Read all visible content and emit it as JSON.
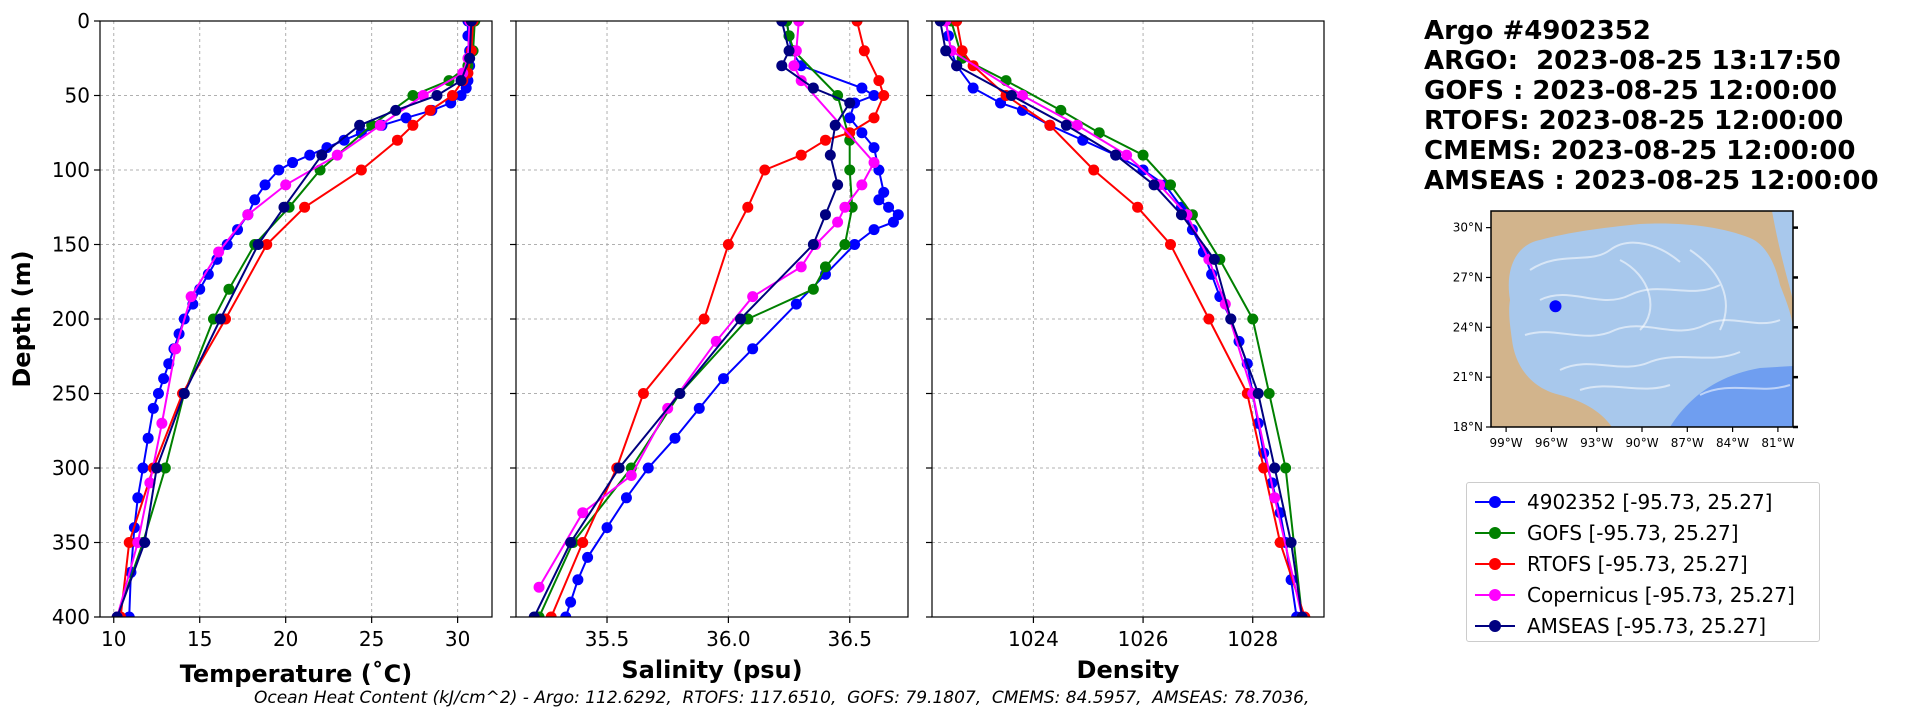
{
  "title": {
    "lines": [
      "Argo #4902352",
      "ARGO:  2023-08-25 13:17:50",
      "GOFS : 2023-08-25 12:00:00",
      "RTOFS: 2023-08-25 12:00:00",
      "CMEMS: 2023-08-25 12:00:00",
      "AMSEAS : 2023-08-25 12:00:00"
    ]
  },
  "footer": {
    "ohc_text": "Ocean Heat Content (kJ/cm^2) - Argo: 112.6292,  RTOFS: 117.6510,  GOFS: 79.1807,  CMEMS: 84.5957,  AMSEAS: 78.7036,"
  },
  "legend": {
    "items": [
      {
        "label": "4902352 [-95.73, 25.27]",
        "color": "#0000ff"
      },
      {
        "label": "GOFS [-95.73, 25.27]",
        "color": "#008000"
      },
      {
        "label": "RTOFS [-95.73, 25.27]",
        "color": "#ff0000"
      },
      {
        "label": "Copernicus [-95.73, 25.27]",
        "color": "#ff00ff"
      },
      {
        "label": "AMSEAS [-95.73, 25.27]",
        "color": "#000080"
      }
    ]
  },
  "chart_data": [
    {
      "type": "line",
      "xlabel": "Temperature (˚C)",
      "ylabel": "Depth (m)",
      "xlim": [
        9.2,
        32
      ],
      "ylim": [
        400,
        0
      ],
      "xticks": [
        10,
        15,
        20,
        25,
        30
      ],
      "yticks": [
        0,
        50,
        100,
        150,
        200,
        250,
        300,
        350,
        400
      ],
      "grid": true,
      "series": [
        {
          "color": "#0000ff",
          "x": [
            30.6,
            30.6,
            30.7,
            30.7,
            30.6,
            30.5,
            30.2,
            29.6,
            28.5,
            27.0,
            25.6,
            24.4,
            23.4,
            22.4,
            21.4,
            20.4,
            19.6,
            18.8,
            18.2,
            17.8,
            17.2,
            16.6,
            16.0,
            15.5,
            15.0,
            14.6,
            14.1,
            13.8,
            13.5,
            13.2,
            12.9,
            12.6,
            12.3,
            12.0,
            11.7,
            11.4,
            11.2,
            11.0,
            10.9
          ],
          "y": [
            0,
            10,
            20,
            30,
            40,
            45,
            50,
            55,
            60,
            65,
            70,
            75,
            80,
            85,
            90,
            95,
            100,
            110,
            120,
            130,
            140,
            150,
            160,
            170,
            180,
            190,
            200,
            210,
            220,
            230,
            240,
            250,
            260,
            280,
            300,
            320,
            340,
            370,
            400
          ]
        },
        {
          "color": "#008000",
          "x": [
            31.0,
            30.9,
            30.6,
            29.5,
            27.4,
            25.0,
            22.0,
            20.2,
            18.2,
            16.7,
            15.8,
            14.1,
            13.0,
            11.7,
            10.2
          ],
          "y": [
            0,
            20,
            30,
            40,
            50,
            70,
            100,
            125,
            150,
            180,
            200,
            250,
            300,
            350,
            400
          ]
        },
        {
          "color": "#ff0000",
          "x": [
            30.9,
            30.8,
            30.6,
            30.3,
            29.7,
            28.4,
            27.4,
            26.5,
            24.4,
            21.1,
            18.9,
            16.5,
            14.0,
            12.3,
            10.9,
            10.4
          ],
          "y": [
            0,
            20,
            35,
            40,
            50,
            60,
            70,
            80,
            100,
            125,
            150,
            200,
            250,
            300,
            350,
            400
          ]
        },
        {
          "color": "#ff00ff",
          "x": [
            30.7,
            30.6,
            30.3,
            28.0,
            25.5,
            23.0,
            20.0,
            17.8,
            16.1,
            14.5,
            13.6,
            12.8,
            12.1,
            11.4,
            10.2
          ],
          "y": [
            0,
            25,
            35,
            50,
            70,
            90,
            110,
            130,
            155,
            185,
            220,
            270,
            310,
            350,
            400
          ]
        },
        {
          "color": "#000080",
          "x": [
            30.8,
            30.7,
            30.2,
            28.8,
            26.4,
            24.3,
            22.1,
            19.9,
            18.4,
            16.2,
            14.1,
            12.5,
            11.8,
            10.2
          ],
          "y": [
            0,
            25,
            40,
            50,
            60,
            70,
            90,
            125,
            150,
            200,
            250,
            300,
            350,
            400
          ]
        }
      ]
    },
    {
      "type": "line",
      "xlabel": "Salinity (psu)",
      "ylabel": "",
      "xlim": [
        35.125,
        36.74
      ],
      "ylim": [
        400,
        0
      ],
      "xticks": [
        35.5,
        36.0,
        36.5
      ],
      "xtick_labels": [
        "35.5",
        "36.0",
        "36.5"
      ],
      "yticks": [
        0,
        50,
        100,
        150,
        200,
        250,
        300,
        350,
        400
      ],
      "grid": true,
      "series": [
        {
          "color": "#0000ff",
          "x": [
            36.24,
            36.25,
            36.26,
            36.3,
            36.55,
            36.6,
            36.52,
            36.5,
            36.55,
            36.6,
            36.62,
            36.64,
            36.62,
            36.66,
            36.7,
            36.68,
            36.6,
            36.52,
            36.4,
            36.28,
            36.1,
            35.98,
            35.88,
            35.78,
            35.67,
            35.58,
            35.5,
            35.42,
            35.38,
            35.35,
            35.33
          ],
          "y": [
            0,
            10,
            20,
            30,
            45,
            50,
            55,
            65,
            75,
            85,
            100,
            115,
            120,
            125,
            130,
            135,
            140,
            150,
            170,
            190,
            220,
            240,
            260,
            280,
            300,
            320,
            340,
            360,
            375,
            390,
            400
          ]
        },
        {
          "color": "#008000",
          "x": [
            36.24,
            36.25,
            36.27,
            36.45,
            36.5,
            36.5,
            36.51,
            36.48,
            36.4,
            36.35,
            36.08,
            35.8,
            35.6,
            35.36,
            35.22
          ],
          "y": [
            0,
            10,
            20,
            50,
            80,
            100,
            125,
            150,
            165,
            180,
            200,
            250,
            300,
            350,
            400
          ]
        },
        {
          "color": "#ff0000",
          "x": [
            36.53,
            36.56,
            36.62,
            36.64,
            36.6,
            36.5,
            36.4,
            36.3,
            36.15,
            36.08,
            36.0,
            35.9,
            35.65,
            35.54,
            35.4,
            35.27
          ],
          "y": [
            0,
            20,
            40,
            50,
            65,
            75,
            80,
            90,
            100,
            125,
            150,
            200,
            250,
            300,
            350,
            400
          ]
        },
        {
          "color": "#ff00ff",
          "x": [
            36.29,
            36.28,
            36.27,
            36.3,
            36.6,
            36.55,
            36.48,
            36.45,
            36.36,
            36.3,
            36.1,
            35.95,
            35.75,
            35.6,
            35.4,
            35.22
          ],
          "y": [
            0,
            20,
            30,
            40,
            95,
            110,
            125,
            135,
            150,
            165,
            185,
            215,
            260,
            305,
            330,
            380
          ]
        },
        {
          "color": "#000080",
          "x": [
            36.22,
            36.25,
            36.22,
            36.35,
            36.5,
            36.44,
            36.42,
            36.45,
            36.4,
            36.35,
            36.05,
            35.8,
            35.55,
            35.35,
            35.2
          ],
          "y": [
            0,
            20,
            30,
            45,
            55,
            70,
            90,
            110,
            130,
            150,
            200,
            250,
            300,
            350,
            400
          ]
        }
      ]
    },
    {
      "type": "line",
      "xlabel": "Density",
      "ylabel": "",
      "xlim": [
        1022.15,
        1029.3
      ],
      "ylim": [
        400,
        0
      ],
      "xticks": [
        1024,
        1026,
        1028
      ],
      "yticks": [
        0,
        50,
        100,
        150,
        200,
        250,
        300,
        350,
        400
      ],
      "grid": true,
      "series": [
        {
          "color": "#0000ff",
          "x": [
            1022.4,
            1022.45,
            1022.5,
            1022.6,
            1022.9,
            1023.4,
            1023.8,
            1024.3,
            1024.9,
            1025.5,
            1026.0,
            1026.4,
            1026.7,
            1026.9,
            1027.1,
            1027.25,
            1027.4,
            1027.6,
            1027.75,
            1027.9,
            1028.0,
            1028.1,
            1028.2,
            1028.35,
            1028.5,
            1028.6,
            1028.7,
            1028.8
          ],
          "y": [
            0,
            10,
            20,
            30,
            45,
            55,
            60,
            70,
            80,
            90,
            100,
            110,
            125,
            140,
            155,
            170,
            185,
            200,
            215,
            230,
            250,
            270,
            290,
            310,
            330,
            350,
            375,
            400
          ]
        },
        {
          "color": "#008000",
          "x": [
            1022.5,
            1022.7,
            1023.5,
            1024.5,
            1025.2,
            1026.0,
            1026.5,
            1026.9,
            1027.4,
            1028.0,
            1028.3,
            1028.6,
            1028.9
          ],
          "y": [
            0,
            25,
            40,
            60,
            75,
            90,
            110,
            130,
            160,
            200,
            250,
            300,
            400
          ]
        },
        {
          "color": "#ff0000",
          "x": [
            1022.6,
            1022.7,
            1022.9,
            1023.5,
            1024.3,
            1025.1,
            1025.9,
            1026.5,
            1027.2,
            1027.9,
            1028.2,
            1028.5,
            1028.95
          ],
          "y": [
            0,
            20,
            30,
            50,
            70,
            100,
            125,
            150,
            200,
            250,
            300,
            350,
            400
          ]
        },
        {
          "color": "#ff00ff",
          "x": [
            1022.4,
            1022.5,
            1023.8,
            1024.8,
            1025.7,
            1026.3,
            1026.8,
            1027.2,
            1027.5,
            1028.0,
            1028.4,
            1028.9
          ],
          "y": [
            0,
            20,
            50,
            70,
            90,
            110,
            130,
            160,
            190,
            250,
            320,
            400
          ]
        },
        {
          "color": "#000080",
          "x": [
            1022.3,
            1022.4,
            1022.6,
            1023.6,
            1024.6,
            1025.5,
            1026.2,
            1026.7,
            1027.3,
            1027.6,
            1028.1,
            1028.4,
            1028.7,
            1028.9
          ],
          "y": [
            0,
            20,
            30,
            50,
            70,
            90,
            110,
            130,
            160,
            200,
            250,
            300,
            350,
            400
          ]
        }
      ]
    }
  ],
  "map": {
    "lat_labels": [
      "30°N",
      "27°N",
      "24°N",
      "21°N",
      "18°N"
    ],
    "lon_labels": [
      "99°W",
      "96°W",
      "93°W",
      "90°W",
      "87°W",
      "84°W",
      "81°W"
    ],
    "marker": {
      "lon": -95.73,
      "lat": 25.27,
      "color": "#0000ff"
    },
    "land_color": "#d2b48c",
    "water_color": "#a8c8ec"
  }
}
